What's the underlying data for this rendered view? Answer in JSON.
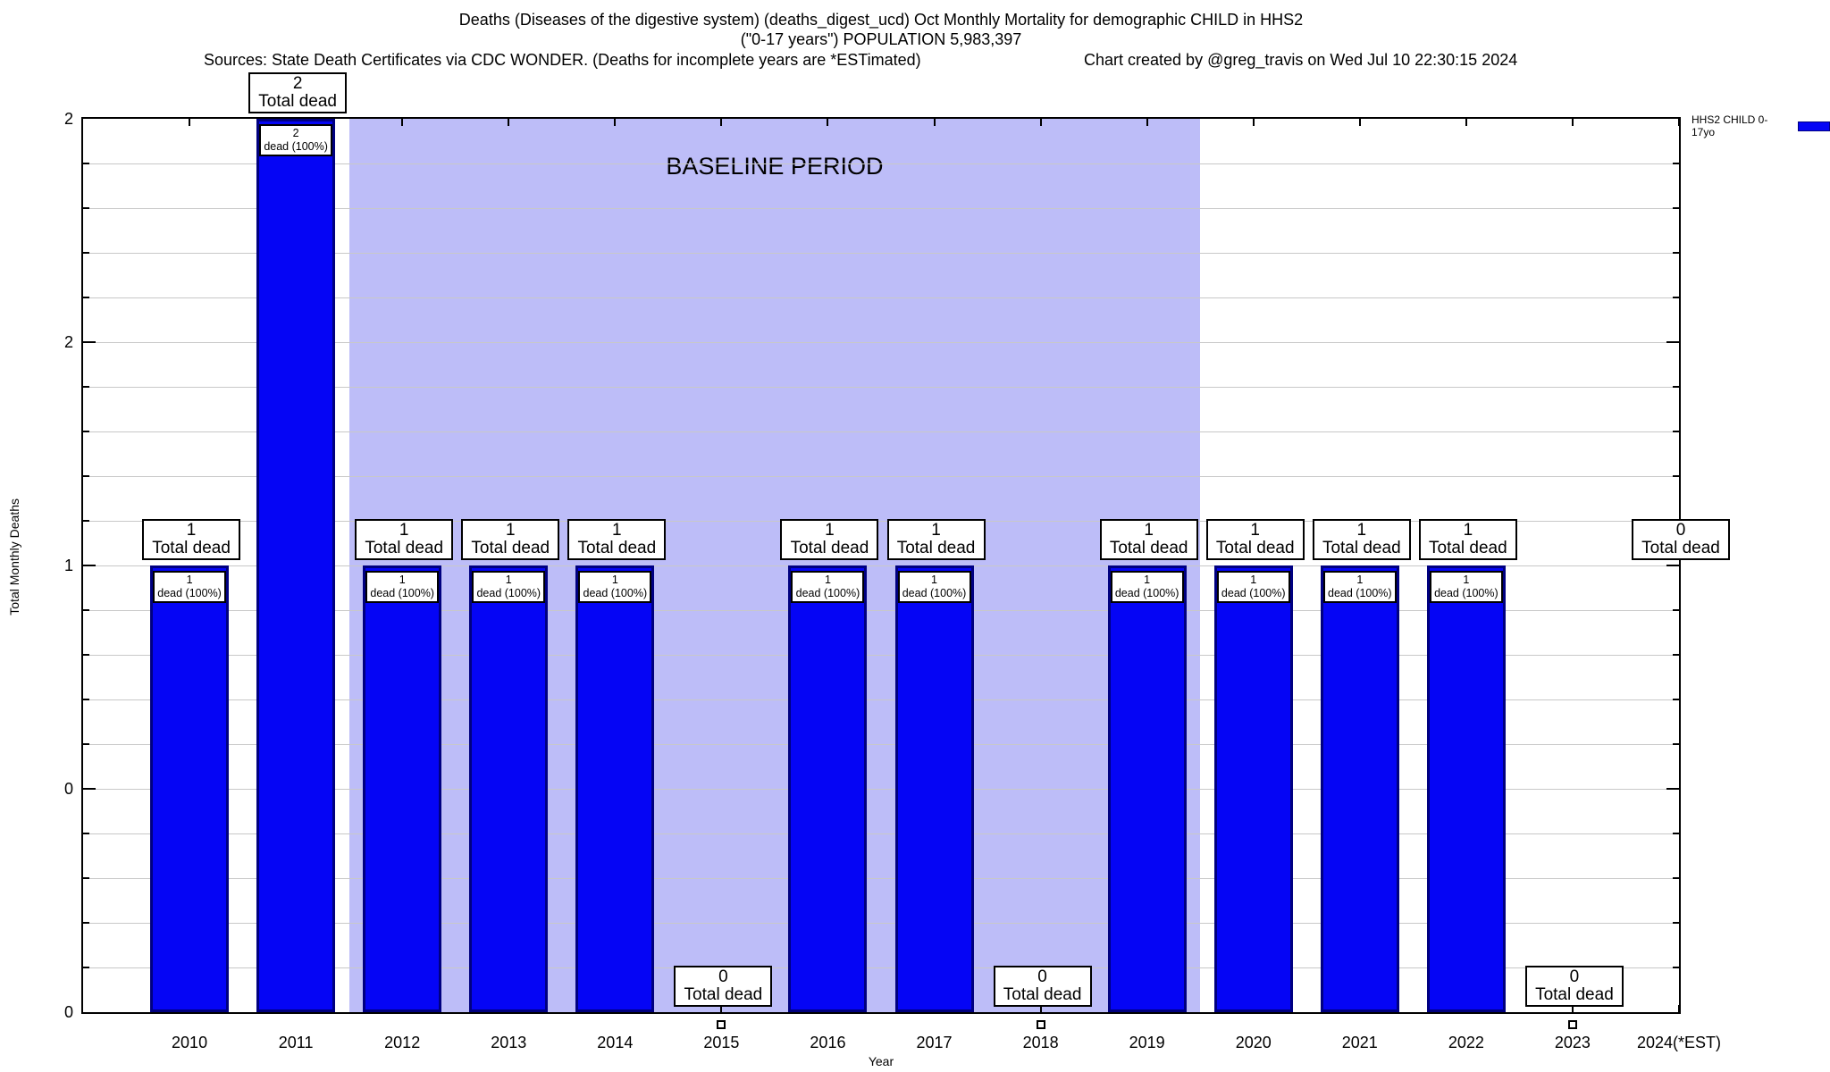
{
  "header": {
    "title_line1": "Deaths (Diseases of the digestive system) (deaths_digest_ucd) Oct Monthly Mortality for demographic CHILD in HHS2",
    "title_line2": "(\"0-17 years\") POPULATION 5,983,397",
    "sources": "Sources: State Death Certificates via CDC WONDER. (Deaths for incomplete years are *ESTimated)",
    "credit": "Chart created by @greg_travis on Wed Jul 10 22:30:15 2024"
  },
  "legend": {
    "label": "HHS2 CHILD 0-17yo",
    "swatch_color": "#0505f5"
  },
  "axes": {
    "y_title": "Total Monthly Deaths",
    "x_title": "Year",
    "y_tick_labels_top_to_bottom": [
      "2",
      "2",
      "1",
      "0",
      "0"
    ],
    "y_tick_values_top_to_bottom": [
      2,
      1.5,
      1,
      0.5,
      0
    ]
  },
  "chart_data": {
    "type": "bar",
    "title": "Deaths (Diseases of the digestive system) (deaths_digest_ucd) Oct Monthly Mortality for demographic CHILD in HHS2 (\"0-17 years\") POPULATION 5,983,397",
    "categories": [
      "2010",
      "2011",
      "2012",
      "2013",
      "2014",
      "2015",
      "2016",
      "2017",
      "2018",
      "2019",
      "2020",
      "2021",
      "2022",
      "2023",
      "2024(*EST)"
    ],
    "series": [
      {
        "name": "HHS2 CHILD 0-17yo",
        "values": [
          1,
          2,
          1,
          1,
          1,
          0,
          1,
          1,
          0,
          1,
          1,
          1,
          1,
          0,
          0
        ]
      }
    ],
    "xlabel": "Year",
    "ylabel": "Total Monthly Deaths",
    "ylim": [
      0,
      2
    ],
    "grid": "horizontal minor gridlines, step 0.1",
    "legend_position": "top-right",
    "bar_annotation_top": "Total dead",
    "bar_annotation_inner": "dead (100%)",
    "baseline_band": {
      "label": "BASELINE PERIOD",
      "from": "2012",
      "to": "2019",
      "color": "#bdbdf8"
    },
    "colors": {
      "bar_fill": "#0505f5",
      "bar_border": "#000080",
      "grid": "#c8c8c8",
      "zero_marker": "#ffffff"
    }
  }
}
